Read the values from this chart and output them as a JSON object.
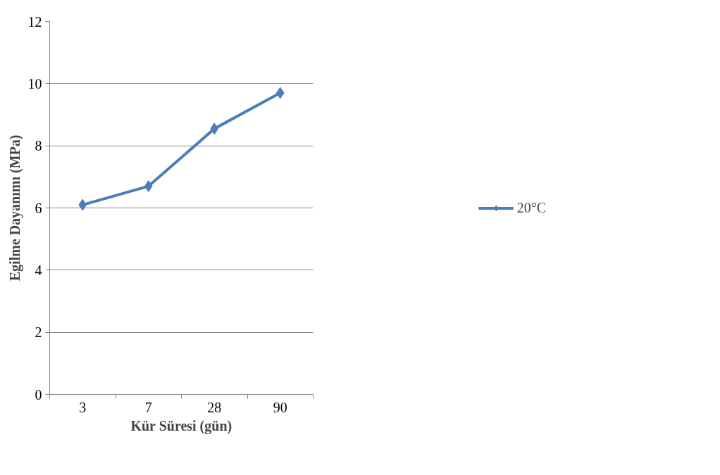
{
  "chart_data": {
    "type": "line",
    "xlabel": "Kür Süresi (gün)",
    "ylabel": "Egilme Dayanımı (MPa)",
    "categories": [
      "3",
      "7",
      "28",
      "90"
    ],
    "series": [
      {
        "name": "20°C",
        "color": "#4a7ebb",
        "values": [
          6.1,
          6.7,
          8.55,
          9.7
        ]
      }
    ],
    "ylim": [
      0,
      12
    ],
    "yticks": [
      0,
      2,
      4,
      6,
      8,
      10,
      12
    ],
    "grid": "y",
    "legend": "right",
    "marker": "diamond",
    "line_style": "solid"
  }
}
